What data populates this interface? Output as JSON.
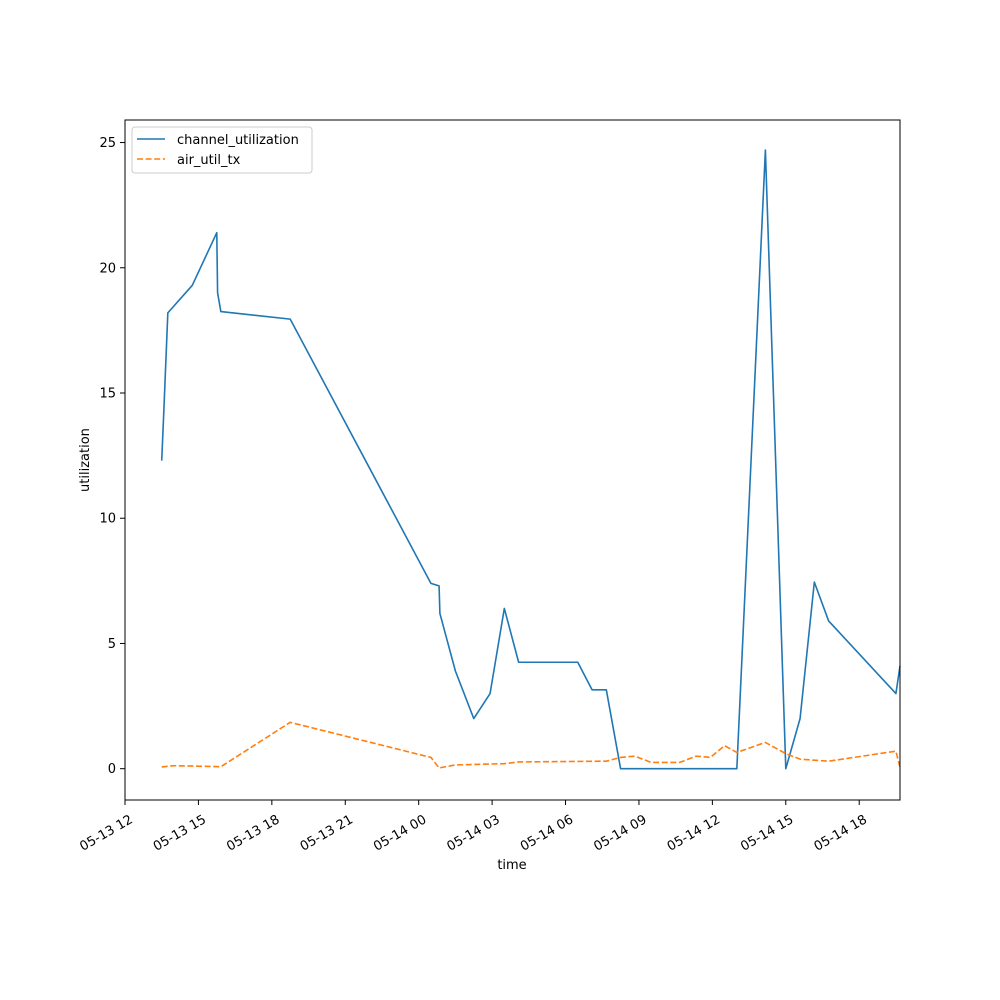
{
  "chart_data": {
    "type": "line",
    "title": "",
    "xlabel": "time",
    "ylabel": "utilization",
    "xlim": [
      "2025-05-13T12:00",
      "2025-05-14T19:40"
    ],
    "ylim": [
      -1.25,
      25.9
    ],
    "x_ticks": [
      {
        "t": "2025-05-13T12:00",
        "label": "05-13 12"
      },
      {
        "t": "2025-05-13T15:00",
        "label": "05-13 15"
      },
      {
        "t": "2025-05-13T18:00",
        "label": "05-13 18"
      },
      {
        "t": "2025-05-13T21:00",
        "label": "05-13 21"
      },
      {
        "t": "2025-05-14T00:00",
        "label": "05-14 00"
      },
      {
        "t": "2025-05-14T03:00",
        "label": "05-14 03"
      },
      {
        "t": "2025-05-14T06:00",
        "label": "05-14 06"
      },
      {
        "t": "2025-05-14T09:00",
        "label": "05-14 09"
      },
      {
        "t": "2025-05-14T12:00",
        "label": "05-14 12"
      },
      {
        "t": "2025-05-14T15:00",
        "label": "05-14 15"
      },
      {
        "t": "2025-05-14T18:00",
        "label": "05-14 18"
      }
    ],
    "y_ticks": [
      0,
      5,
      10,
      15,
      20,
      25
    ],
    "grid": false,
    "legend_position": "top-left",
    "series": [
      {
        "name": "channel_utilization",
        "color": "#1f77b4",
        "style": "solid",
        "points": [
          [
            "2025-05-13T13:30",
            12.3
          ],
          [
            "2025-05-13T13:35",
            14.2
          ],
          [
            "2025-05-13T13:45",
            18.2
          ],
          [
            "2025-05-13T14:45",
            19.3
          ],
          [
            "2025-05-13T15:45",
            21.4
          ],
          [
            "2025-05-13T15:47",
            19.0
          ],
          [
            "2025-05-13T15:55",
            18.25
          ],
          [
            "2025-05-13T18:45",
            17.95
          ],
          [
            "2025-05-14T00:30",
            7.4
          ],
          [
            "2025-05-14T00:50",
            7.3
          ],
          [
            "2025-05-14T00:52",
            6.2
          ],
          [
            "2025-05-14T01:30",
            3.9
          ],
          [
            "2025-05-14T02:15",
            2.0
          ],
          [
            "2025-05-14T02:55",
            3.0
          ],
          [
            "2025-05-14T03:30",
            6.4
          ],
          [
            "2025-05-14T04:05",
            4.25
          ],
          [
            "2025-05-14T06:30",
            4.25
          ],
          [
            "2025-05-14T07:05",
            3.15
          ],
          [
            "2025-05-14T07:40",
            3.15
          ],
          [
            "2025-05-14T08:15",
            0.0
          ],
          [
            "2025-05-14T13:00",
            0.0
          ],
          [
            "2025-05-14T14:10",
            24.7
          ],
          [
            "2025-05-14T15:00",
            0.0
          ],
          [
            "2025-05-14T15:35",
            2.0
          ],
          [
            "2025-05-14T16:10",
            7.45
          ],
          [
            "2025-05-14T16:45",
            5.9
          ],
          [
            "2025-05-14T19:30",
            3.0
          ],
          [
            "2025-05-14T19:40",
            4.1
          ]
        ]
      },
      {
        "name": "air_util_tx",
        "color": "#ff7f0e",
        "style": "dashed",
        "points": [
          [
            "2025-05-13T13:30",
            0.07
          ],
          [
            "2025-05-13T14:00",
            0.12
          ],
          [
            "2025-05-13T15:55",
            0.08
          ],
          [
            "2025-05-13T18:45",
            1.85
          ],
          [
            "2025-05-14T00:30",
            0.45
          ],
          [
            "2025-05-14T00:50",
            0.03
          ],
          [
            "2025-05-14T01:30",
            0.15
          ],
          [
            "2025-05-14T03:30",
            0.2
          ],
          [
            "2025-05-14T04:05",
            0.27
          ],
          [
            "2025-05-14T07:40",
            0.3
          ],
          [
            "2025-05-14T08:15",
            0.45
          ],
          [
            "2025-05-14T08:50",
            0.5
          ],
          [
            "2025-05-14T09:30",
            0.25
          ],
          [
            "2025-05-14T10:40",
            0.25
          ],
          [
            "2025-05-14T11:20",
            0.5
          ],
          [
            "2025-05-14T11:55",
            0.45
          ],
          [
            "2025-05-14T12:30",
            0.92
          ],
          [
            "2025-05-14T13:00",
            0.65
          ],
          [
            "2025-05-14T14:10",
            1.05
          ],
          [
            "2025-05-14T15:00",
            0.6
          ],
          [
            "2025-05-14T15:35",
            0.38
          ],
          [
            "2025-05-14T16:45",
            0.3
          ],
          [
            "2025-05-14T19:30",
            0.7
          ],
          [
            "2025-05-14T19:40",
            0.05
          ]
        ]
      }
    ]
  }
}
